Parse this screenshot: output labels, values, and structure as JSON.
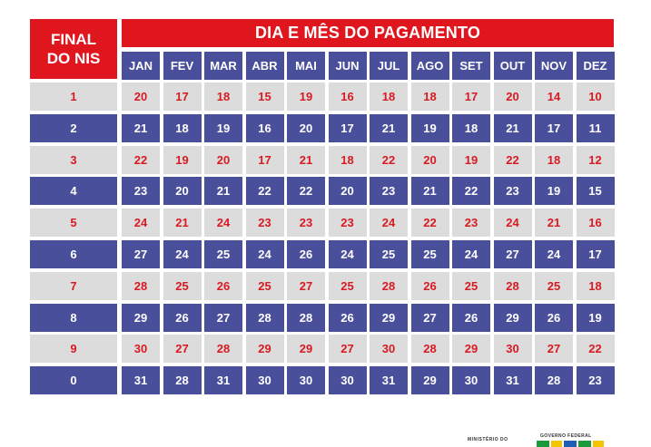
{
  "header": {
    "final_line1": "FINAL",
    "final_line2": "DO NIS",
    "title": "DIA E MÊS DO PAGAMENTO"
  },
  "months": [
    "JAN",
    "FEV",
    "MAR",
    "ABR",
    "MAI",
    "JUN",
    "JUL",
    "AGO",
    "SET",
    "OUT",
    "NOV",
    "DEZ"
  ],
  "rows": [
    {
      "nis": "1",
      "days": [
        "20",
        "17",
        "18",
        "15",
        "19",
        "16",
        "18",
        "18",
        "17",
        "20",
        "14",
        "10"
      ]
    },
    {
      "nis": "2",
      "days": [
        "21",
        "18",
        "19",
        "16",
        "20",
        "17",
        "21",
        "19",
        "18",
        "21",
        "17",
        "11"
      ]
    },
    {
      "nis": "3",
      "days": [
        "22",
        "19",
        "20",
        "17",
        "21",
        "18",
        "22",
        "20",
        "19",
        "22",
        "18",
        "12"
      ]
    },
    {
      "nis": "4",
      "days": [
        "23",
        "20",
        "21",
        "22",
        "22",
        "20",
        "23",
        "21",
        "22",
        "23",
        "19",
        "15"
      ]
    },
    {
      "nis": "5",
      "days": [
        "24",
        "21",
        "24",
        "23",
        "23",
        "23",
        "24",
        "22",
        "23",
        "24",
        "21",
        "16"
      ]
    },
    {
      "nis": "6",
      "days": [
        "27",
        "24",
        "25",
        "24",
        "26",
        "24",
        "25",
        "25",
        "24",
        "27",
        "24",
        "17"
      ]
    },
    {
      "nis": "7",
      "days": [
        "28",
        "25",
        "26",
        "25",
        "27",
        "25",
        "28",
        "26",
        "25",
        "28",
        "25",
        "18"
      ]
    },
    {
      "nis": "8",
      "days": [
        "29",
        "26",
        "27",
        "28",
        "28",
        "26",
        "29",
        "27",
        "26",
        "29",
        "26",
        "19"
      ]
    },
    {
      "nis": "9",
      "days": [
        "30",
        "27",
        "28",
        "29",
        "29",
        "27",
        "30",
        "28",
        "29",
        "30",
        "27",
        "22"
      ]
    },
    {
      "nis": "0",
      "days": [
        "31",
        "28",
        "31",
        "30",
        "30",
        "30",
        "31",
        "29",
        "30",
        "31",
        "28",
        "23"
      ]
    }
  ],
  "footer": {
    "ministry": "MINISTÉRIO DO",
    "government": "GOVERNO FEDERAL"
  },
  "colors": {
    "red": "#e0161f",
    "blue": "#4a4f9c",
    "light": "#dcdcdd"
  }
}
